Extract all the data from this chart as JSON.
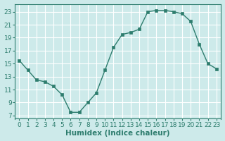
{
  "x": [
    0,
    1,
    2,
    3,
    4,
    5,
    6,
    7,
    8,
    9,
    10,
    11,
    12,
    13,
    14,
    15,
    16,
    17,
    18,
    19,
    20,
    21,
    22,
    23
  ],
  "y": [
    15.5,
    14.0,
    12.5,
    12.2,
    11.5,
    10.2,
    7.5,
    7.5,
    9.0,
    10.5,
    14.0,
    17.5,
    19.5,
    19.8,
    20.3,
    23.0,
    23.2,
    23.2,
    23.0,
    22.7,
    21.5,
    18.0,
    15.0,
    14.2
  ],
  "xlabel": "Humidex (Indice chaleur)",
  "xlim": [
    -0.5,
    23.5
  ],
  "ylim": [
    6.5,
    24.2
  ],
  "yticks": [
    7,
    9,
    11,
    13,
    15,
    17,
    19,
    21,
    23
  ],
  "xticks": [
    0,
    1,
    2,
    3,
    4,
    5,
    6,
    7,
    8,
    9,
    10,
    11,
    12,
    13,
    14,
    15,
    16,
    17,
    18,
    19,
    20,
    21,
    22,
    23
  ],
  "line_color": "#2e7d6e",
  "marker": "s",
  "marker_size": 2.2,
  "bg_color": "#cdeaea",
  "grid_color": "#b8d8d8",
  "xlabel_fontsize": 7.5,
  "tick_fontsize": 6.5,
  "linewidth": 1.0
}
